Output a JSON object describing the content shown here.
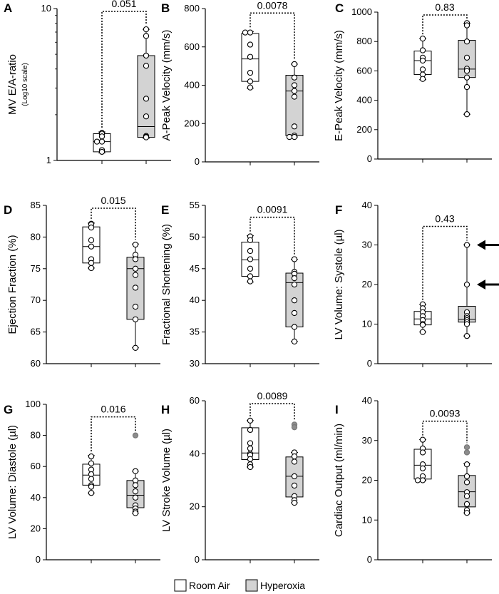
{
  "colors": {
    "room_air": "#ffffff",
    "hyperoxia": "#d3d3d3",
    "outlier_point": "#8c8c8c",
    "stroke": "#000000"
  },
  "legend": [
    {
      "label": "Room Air",
      "color": "#ffffff"
    },
    {
      "label": "Hyperoxia",
      "color": "#d3d3d3"
    }
  ],
  "chart_data": [
    {
      "panel": "A",
      "type": "box",
      "ylabel": "MV E/A-ratio",
      "ylabel2": "(Log10 scale)",
      "yscale": "log",
      "ylim": [
        1,
        10
      ],
      "yticks": [
        1,
        10
      ],
      "pvalue": "0.051",
      "series": [
        {
          "name": "Room Air",
          "box": {
            "q1": 1.14,
            "median": 1.33,
            "q3": 1.5,
            "min": 1.12,
            "max": 1.54
          },
          "points": [
            1.52,
            1.5,
            1.44,
            1.33,
            1.33,
            1.17,
            1.14
          ]
        },
        {
          "name": "Hyperoxia",
          "box": {
            "q1": 1.42,
            "median": 1.67,
            "q3": 4.9,
            "min": 1.4,
            "max": 7.3
          },
          "points": [
            7.3,
            6.6,
            4.9,
            4.2,
            2.55,
            1.95,
            1.45,
            1.43,
            1.42
          ]
        }
      ]
    },
    {
      "panel": "B",
      "type": "box",
      "ylabel": "A-Peak Velocity (mm/s)",
      "ylim": [
        0,
        800
      ],
      "yticks": [
        0,
        200,
        400,
        600,
        800
      ],
      "pvalue": "0.0078",
      "series": [
        {
          "name": "Room Air",
          "box": {
            "q1": 420,
            "median": 537,
            "q3": 670,
            "min": 385,
            "max": 680
          },
          "points": [
            675,
            675,
            612,
            548,
            465,
            420,
            388
          ]
        },
        {
          "name": "Hyperoxia",
          "box": {
            "q1": 137,
            "median": 370,
            "q3": 452,
            "min": 130,
            "max": 510
          },
          "points": [
            510,
            440,
            400,
            370,
            340,
            185,
            137,
            130,
            130
          ]
        }
      ]
    },
    {
      "panel": "C",
      "type": "box",
      "ylabel": "E-Peak Velocity (mm/s)",
      "ylim": [
        0,
        1000
      ],
      "yticks": [
        0,
        200,
        400,
        600,
        800,
        1000
      ],
      "pvalue": "0.83",
      "series": [
        {
          "name": "Room Air",
          "box": {
            "q1": 575,
            "median": 670,
            "q3": 735,
            "min": 540,
            "max": 820
          },
          "points": [
            820,
            740,
            690,
            670,
            610,
            575,
            545
          ]
        },
        {
          "name": "Hyperoxia",
          "box": {
            "q1": 555,
            "median": 612,
            "q3": 808,
            "min": 305,
            "max": 925
          },
          "points": [
            925,
            910,
            800,
            690,
            615,
            600,
            555,
            490,
            305
          ]
        }
      ]
    },
    {
      "panel": "D",
      "type": "box",
      "ylabel": "Ejection Fraction (%)",
      "ylim": [
        60,
        85
      ],
      "yticks": [
        60,
        65,
        70,
        75,
        80,
        85
      ],
      "pvalue": "0.015",
      "series": [
        {
          "name": "Room Air",
          "box": {
            "q1": 75.9,
            "median": 78.5,
            "q3": 81.6,
            "min": 75.1,
            "max": 82.2
          },
          "points": [
            82.1,
            82.0,
            81.5,
            79.5,
            78.5,
            76.5,
            75.9,
            75.1
          ]
        },
        {
          "name": "Hyperoxia",
          "box": {
            "q1": 67.0,
            "median": 75.0,
            "q3": 76.8,
            "min": 62.5,
            "max": 78.9
          },
          "points": [
            78.8,
            77.2,
            76.5,
            75.0,
            74.0,
            72.0,
            69.0,
            67.0,
            62.5
          ]
        }
      ]
    },
    {
      "panel": "E",
      "type": "box",
      "ylabel": "Fractional Shortening (%)",
      "ylim": [
        30,
        55
      ],
      "yticks": [
        30,
        35,
        40,
        45,
        50,
        55
      ],
      "pvalue": "0.0091",
      "series": [
        {
          "name": "Room Air",
          "box": {
            "q1": 43.8,
            "median": 46.4,
            "q3": 49.2,
            "min": 42.9,
            "max": 50.2
          },
          "points": [
            50.1,
            49.5,
            47.8,
            46.5,
            45.0,
            43.8,
            43.0
          ]
        },
        {
          "name": "Hyperoxia",
          "box": {
            "q1": 35.8,
            "median": 42.8,
            "q3": 44.3,
            "min": 33.5,
            "max": 46.5
          },
          "points": [
            46.5,
            44.5,
            44.2,
            43.5,
            42.5,
            40.0,
            38.0,
            35.8,
            33.5
          ]
        }
      ]
    },
    {
      "panel": "F",
      "type": "box",
      "ylabel": "LV Volume: Systole (µl)",
      "ylim": [
        0,
        40
      ],
      "yticks": [
        0,
        10,
        20,
        30,
        40
      ],
      "pvalue": "0.43",
      "series": [
        {
          "name": "Room Air",
          "box": {
            "q1": 9.8,
            "median": 11.3,
            "q3": 13.2,
            "min": 8.0,
            "max": 15.0
          },
          "points": [
            15.0,
            14.0,
            13.0,
            12.0,
            11.0,
            10.0,
            9.8,
            8.0
          ]
        },
        {
          "name": "Hyperoxia",
          "box": {
            "q1": 10.5,
            "median": 11.2,
            "q3": 14.5,
            "min": 7.0,
            "max": 30.0
          },
          "points": [
            30.0,
            20.0,
            13.0,
            12.0,
            11.5,
            11.0,
            10.5,
            10.0,
            7.0
          ]
        }
      ],
      "annotations": [
        "arrow at 30",
        "arrow at 20"
      ]
    },
    {
      "panel": "G",
      "type": "box",
      "ylabel": "LV Volume: Diastole (µl)",
      "ylim": [
        0,
        100
      ],
      "yticks": [
        0,
        20,
        40,
        60,
        80,
        100
      ],
      "pvalue": "0.016",
      "series": [
        {
          "name": "Room Air",
          "box": {
            "q1": 48,
            "median": 54.5,
            "q3": 61.5,
            "min": 43,
            "max": 67
          },
          "points": [
            66.5,
            62,
            58,
            55,
            52,
            48,
            47,
            43
          ]
        },
        {
          "name": "Hyperoxia",
          "box": {
            "q1": 33.5,
            "median": 41.5,
            "q3": 51,
            "min": 30,
            "max": 57
          },
          "points": [
            80,
            57,
            51,
            48,
            44,
            40,
            35,
            33,
            31,
            30
          ]
        }
      ]
    },
    {
      "panel": "H",
      "type": "box",
      "ylabel": "LV Stroke Volume (µl)",
      "ylim": [
        0,
        60
      ],
      "yticks": [
        0,
        20,
        40,
        60
      ],
      "pvalue": "0.0089",
      "series": [
        {
          "name": "Room Air",
          "box": {
            "q1": 37.8,
            "median": 40.3,
            "q3": 49.8,
            "min": 35.0,
            "max": 52.5
          },
          "points": [
            52.5,
            49.0,
            44.0,
            42.0,
            40.0,
            39.5,
            38.0,
            36.0,
            35.0
          ]
        },
        {
          "name": "Hyperoxia",
          "box": {
            "q1": 23.7,
            "median": 31.5,
            "q3": 38.8,
            "min": 21.5,
            "max": 40.5
          },
          "points": [
            51.0,
            50.0,
            40.5,
            39.0,
            37.0,
            31.5,
            28.0,
            24.0,
            22.5,
            21.5
          ]
        }
      ]
    },
    {
      "panel": "I",
      "type": "box",
      "ylabel": "Cardiac Output (ml/min)",
      "ylim": [
        0,
        40
      ],
      "yticks": [
        0,
        10,
        20,
        30,
        40
      ],
      "pvalue": "0.0093",
      "series": [
        {
          "name": "Room Air",
          "box": {
            "q1": 20.3,
            "median": 23.8,
            "q3": 27.8,
            "min": 20.0,
            "max": 30.2
          },
          "points": [
            30.2,
            28.0,
            27.0,
            24.0,
            23.0,
            21.0,
            20.0,
            20.0
          ]
        },
        {
          "name": "Hyperoxia",
          "box": {
            "q1": 13.3,
            "median": 17.1,
            "q3": 21.2,
            "min": 11.8,
            "max": 24.2
          },
          "points": [
            28.3,
            27.0,
            24.0,
            21.0,
            19.5,
            17.0,
            16.0,
            14.0,
            12.5,
            11.8
          ]
        }
      ]
    }
  ]
}
